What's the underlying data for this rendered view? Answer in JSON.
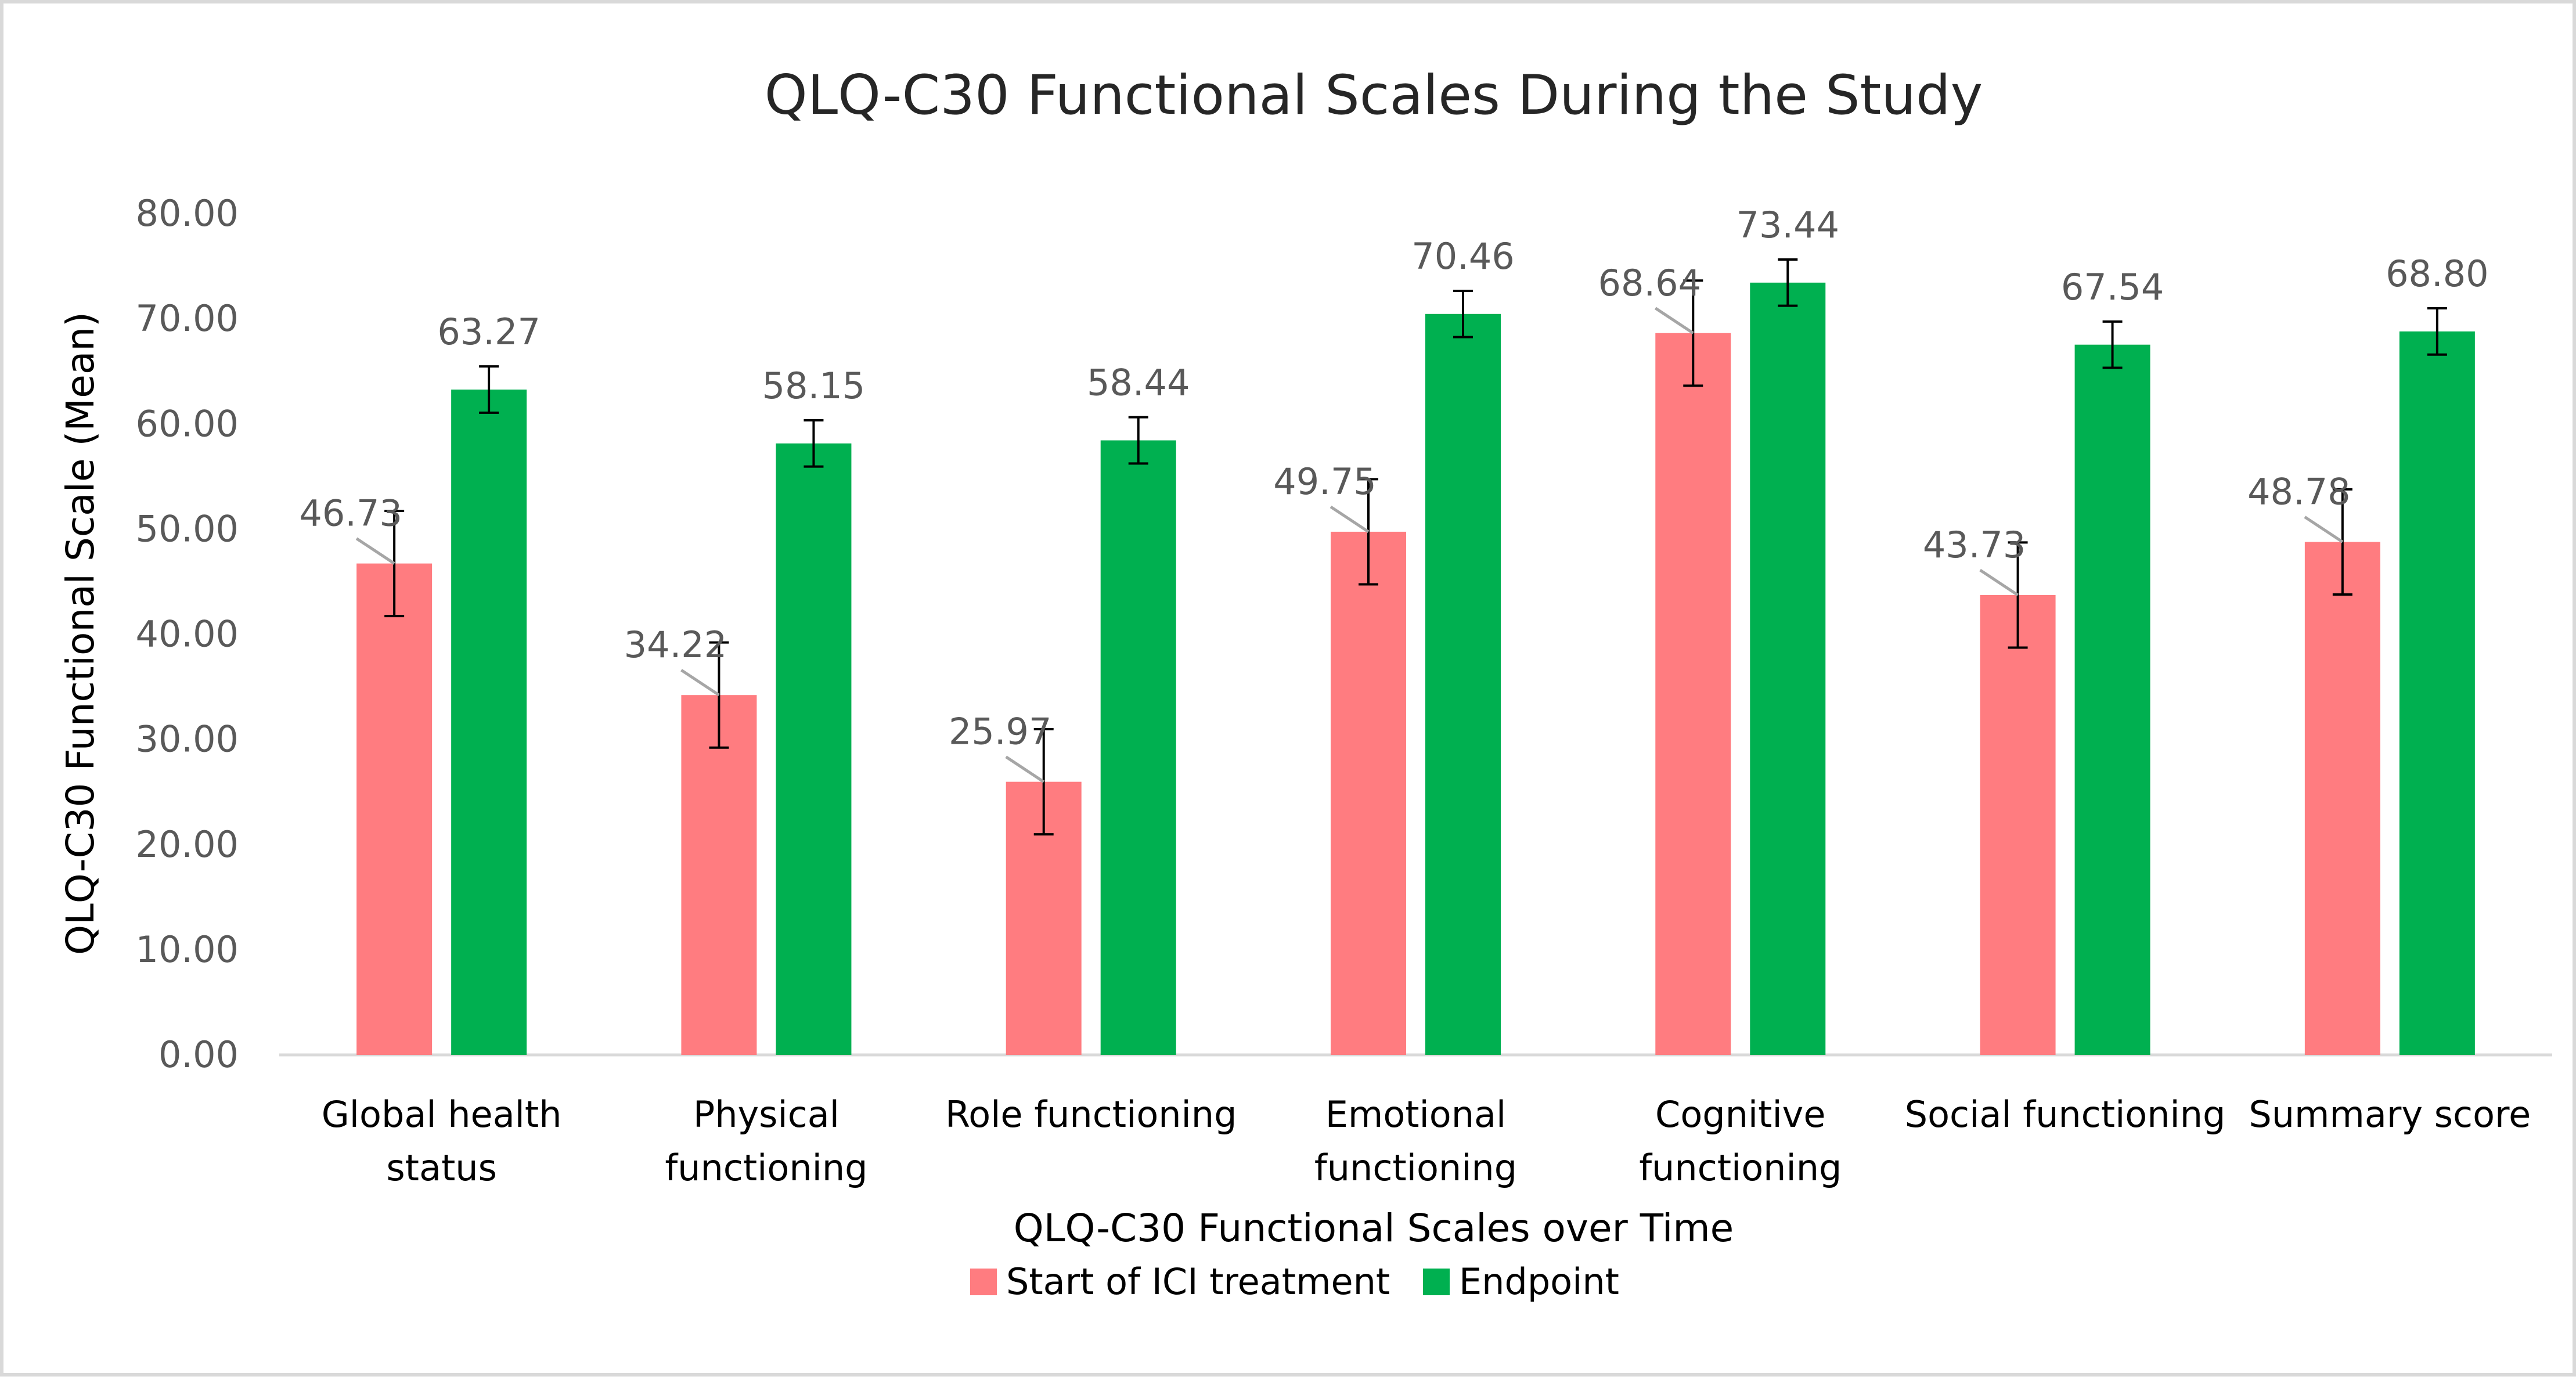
{
  "chart_data": {
    "type": "bar",
    "title": "QLQ-C30 Functional Scales During the Study",
    "xlabel": "QLQ-C30 Functional Scales over Time",
    "ylabel": "QLQ-C30 Functional Scale (Mean)",
    "ylim": [
      0,
      80
    ],
    "yticks": [
      "0.00",
      "10.00",
      "20.00",
      "30.00",
      "40.00",
      "50.00",
      "60.00",
      "70.00",
      "80.00"
    ],
    "categories": [
      [
        "Global health",
        "status"
      ],
      [
        "Physical",
        "functioning"
      ],
      [
        "Role functioning"
      ],
      [
        "Emotional",
        "functioning"
      ],
      [
        "Cognitive",
        "functioning"
      ],
      [
        "Social functioning"
      ],
      [
        "Summary score"
      ]
    ],
    "series": [
      {
        "name": "Start of ICI treatment",
        "color": "#ff7c80",
        "values": [
          46.73,
          34.22,
          25.97,
          49.75,
          68.64,
          43.73,
          48.78
        ],
        "labels": [
          "46.73",
          "34.22",
          "25.97",
          "49.75",
          "68.64",
          "43.73",
          "48.78"
        ],
        "error": [
          5,
          5,
          5,
          5,
          5,
          5,
          5
        ]
      },
      {
        "name": "Endpoint",
        "color": "#00b050",
        "values": [
          63.27,
          58.15,
          58.44,
          70.46,
          73.44,
          67.54,
          68.8
        ],
        "labels": [
          "63.27",
          "58.15",
          "58.44",
          "70.46",
          "73.44",
          "67.54",
          "68.80"
        ],
        "error": [
          2.2,
          2.2,
          2.2,
          2.2,
          2.2,
          2.2,
          2.2
        ]
      }
    ],
    "legend_position": "bottom",
    "grid": false
  }
}
